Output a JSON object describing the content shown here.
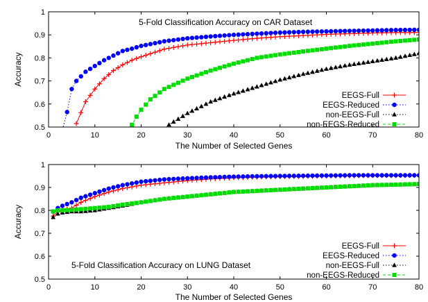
{
  "chart_data": [
    {
      "type": "line",
      "title": "5-Fold Classification Accuracy on CAR Dataset",
      "xlabel": "The Number of Selected Genes",
      "ylabel": "Accuracy",
      "xlim": [
        0,
        80
      ],
      "ylim": [
        0.5,
        1
      ],
      "xticks": [
        "0",
        "10",
        "20",
        "30",
        "40",
        "50",
        "60",
        "70",
        "80"
      ],
      "yticks": [
        "0.5",
        "0.6",
        "0.7",
        "0.8",
        "0.9",
        "1"
      ],
      "legend_position": "bottom-right",
      "series": [
        {
          "name": "EEGS-Full",
          "color": "#ff0000",
          "marker": "plus",
          "dash": "solid",
          "x": [
            6,
            8,
            10,
            12,
            14,
            16,
            18,
            20,
            25,
            30,
            35,
            40,
            45,
            50,
            55,
            60,
            65,
            70,
            75,
            80
          ],
          "y": [
            0.515,
            0.61,
            0.665,
            0.71,
            0.745,
            0.77,
            0.79,
            0.805,
            0.838,
            0.856,
            0.866,
            0.876,
            0.885,
            0.892,
            0.897,
            0.902,
            0.905,
            0.908,
            0.91,
            0.91
          ]
        },
        {
          "name": "EEGS-Reduced",
          "color": "#0000ff",
          "marker": "circle",
          "dash": "dotted",
          "x": [
            3,
            4,
            5,
            6,
            8,
            10,
            12,
            14,
            16,
            18,
            20,
            25,
            30,
            35,
            40,
            45,
            50,
            55,
            60,
            65,
            70,
            75,
            80
          ],
          "y": [
            0.49,
            0.565,
            0.665,
            0.7,
            0.74,
            0.765,
            0.79,
            0.81,
            0.83,
            0.84,
            0.852,
            0.872,
            0.885,
            0.893,
            0.9,
            0.905,
            0.91,
            0.913,
            0.915,
            0.917,
            0.919,
            0.921,
            0.922
          ]
        },
        {
          "name": "non-EEGS-Full",
          "color": "#000000",
          "marker": "triangle",
          "dash": "dotted",
          "x": [
            25,
            26,
            28,
            30,
            35,
            40,
            45,
            50,
            55,
            60,
            65,
            70,
            75,
            80
          ],
          "y": [
            0.49,
            0.51,
            0.535,
            0.56,
            0.61,
            0.645,
            0.675,
            0.705,
            0.73,
            0.752,
            0.77,
            0.785,
            0.8,
            0.82
          ]
        },
        {
          "name": "non-EEGS-Reduced",
          "color": "#00dd00",
          "marker": "square",
          "dash": "dashed",
          "x": [
            17,
            18,
            19,
            20,
            22,
            25,
            30,
            35,
            40,
            45,
            50,
            55,
            60,
            65,
            70,
            75,
            80
          ],
          "y": [
            0.49,
            0.51,
            0.545,
            0.575,
            0.62,
            0.665,
            0.71,
            0.745,
            0.775,
            0.8,
            0.815,
            0.828,
            0.84,
            0.852,
            0.862,
            0.872,
            0.88
          ]
        }
      ]
    },
    {
      "type": "line",
      "title": "5-Fold Classification Accuracy on LUNG Dataset",
      "xlabel": "The Number of Selected Genes",
      "ylabel": "Accuracy",
      "xlim": [
        0,
        80
      ],
      "ylim": [
        0.5,
        1
      ],
      "xticks": [
        "0",
        "10",
        "20",
        "30",
        "40",
        "50",
        "60",
        "70",
        "80"
      ],
      "yticks": [
        "0.5",
        "0.6",
        "0.7",
        "0.8",
        "0.9",
        "1"
      ],
      "legend_position": "right",
      "series": [
        {
          "name": "EEGS-Full",
          "color": "#ff0000",
          "marker": "plus",
          "dash": "solid",
          "x": [
            1,
            2,
            3,
            5,
            7,
            10,
            13,
            16,
            20,
            25,
            30,
            35,
            40,
            45,
            50,
            55,
            60,
            65,
            70,
            75,
            80
          ],
          "y": [
            0.775,
            0.795,
            0.8,
            0.81,
            0.835,
            0.86,
            0.88,
            0.895,
            0.91,
            0.92,
            0.93,
            0.937,
            0.942,
            0.945,
            0.947,
            0.948,
            0.95,
            0.951,
            0.952,
            0.952,
            0.953
          ]
        },
        {
          "name": "EEGS-Reduced",
          "color": "#0000ff",
          "marker": "circle",
          "dash": "dotted",
          "x": [
            1,
            2,
            3,
            5,
            7,
            10,
            13,
            16,
            20,
            25,
            30,
            35,
            40,
            45,
            50,
            55,
            60,
            65,
            70,
            75,
            80
          ],
          "y": [
            0.795,
            0.81,
            0.82,
            0.835,
            0.855,
            0.875,
            0.895,
            0.91,
            0.925,
            0.935,
            0.94,
            0.944,
            0.947,
            0.949,
            0.95,
            0.951,
            0.952,
            0.953,
            0.953,
            0.953,
            0.953
          ]
        },
        {
          "name": "non-EEGS-Full",
          "color": "#000000",
          "marker": "triangle",
          "dash": "dotted",
          "x": [
            1,
            2,
            3,
            5,
            7,
            10,
            13,
            16,
            20,
            25,
            30,
            35,
            40,
            45,
            50,
            55,
            60,
            65,
            70,
            75,
            80
          ],
          "y": [
            0.77,
            0.785,
            0.79,
            0.795,
            0.795,
            0.8,
            0.81,
            0.82,
            0.835,
            0.85,
            0.86,
            0.87,
            0.88,
            0.885,
            0.89,
            0.895,
            0.9,
            0.905,
            0.91,
            0.912,
            0.914
          ]
        },
        {
          "name": "non-EEGS-Reduced",
          "color": "#00dd00",
          "marker": "square",
          "dash": "dashed",
          "x": [
            1,
            2,
            3,
            5,
            7,
            10,
            13,
            16,
            20,
            25,
            30,
            35,
            40,
            45,
            50,
            55,
            60,
            65,
            70,
            75,
            80
          ],
          "y": [
            0.795,
            0.8,
            0.8,
            0.802,
            0.805,
            0.81,
            0.815,
            0.825,
            0.835,
            0.85,
            0.86,
            0.87,
            0.88,
            0.885,
            0.89,
            0.895,
            0.9,
            0.905,
            0.91,
            0.912,
            0.915
          ]
        }
      ]
    }
  ]
}
